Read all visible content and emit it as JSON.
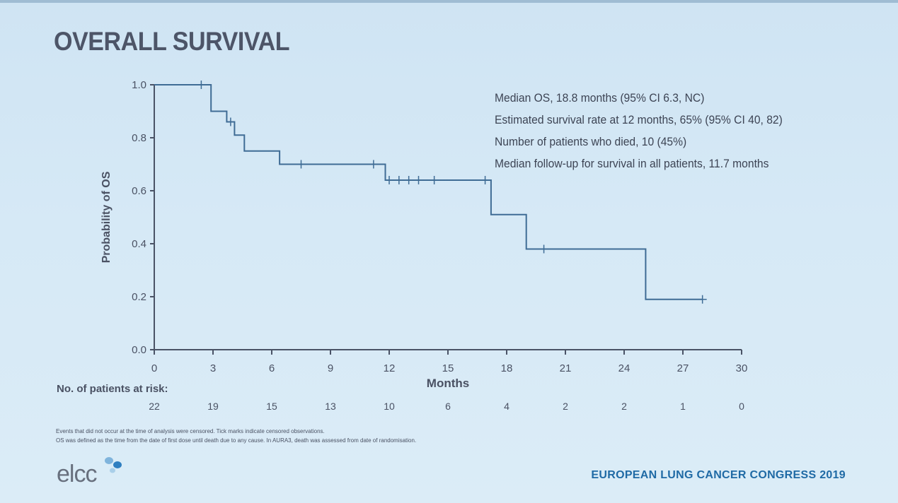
{
  "slide": {
    "title": "OVERALL SURVIVAL",
    "logo_text": "elcc",
    "congress": "EUROPEAN LUNG CANCER CONGRESS 2019"
  },
  "stats": [
    "Median OS, 18.8 months (95% CI 6.3, NC)",
    "Estimated survival rate at 12 months, 65% (95% CI 40, 82)",
    "Number of patients who died, 10 (45%)",
    "Median follow-up for survival in all patients, 11.7 months"
  ],
  "risk": {
    "title": "No. of patients at risk:",
    "values": [
      "22",
      "19",
      "15",
      "13",
      "10",
      "6",
      "4",
      "2",
      "2",
      "1",
      "0"
    ]
  },
  "footnotes": [
    "Events that did not occur at the time of analysis were censored. Tick marks indicate censored observations.",
    "OS was defined as the time from the date of first dose until death due to any cause. In AURA3, death was assessed from date of randomisation."
  ],
  "chart_data": {
    "type": "line",
    "xlabel": "Months",
    "ylabel": "Probability of OS",
    "xlim": [
      0,
      30
    ],
    "ylim": [
      0,
      1
    ],
    "x_ticks": [
      "0",
      "3",
      "6",
      "9",
      "12",
      "15",
      "18",
      "21",
      "24",
      "27",
      "30"
    ],
    "y_ticks": [
      "0.0",
      "0.2",
      "0.4",
      "0.6",
      "0.8",
      "1.0"
    ],
    "series": [
      {
        "step": true,
        "points": [
          {
            "x": 0,
            "y": 1.0
          },
          {
            "x": 2.9,
            "y": 1.0
          },
          {
            "x": 2.9,
            "y": 0.9
          },
          {
            "x": 3.7,
            "y": 0.9
          },
          {
            "x": 3.7,
            "y": 0.86
          },
          {
            "x": 4.1,
            "y": 0.86
          },
          {
            "x": 4.1,
            "y": 0.81
          },
          {
            "x": 4.6,
            "y": 0.81
          },
          {
            "x": 4.6,
            "y": 0.75
          },
          {
            "x": 6.4,
            "y": 0.75
          },
          {
            "x": 6.4,
            "y": 0.7
          },
          {
            "x": 11.8,
            "y": 0.7
          },
          {
            "x": 11.8,
            "y": 0.64
          },
          {
            "x": 17.2,
            "y": 0.64
          },
          {
            "x": 17.2,
            "y": 0.51
          },
          {
            "x": 19.0,
            "y": 0.51
          },
          {
            "x": 19.0,
            "y": 0.38
          },
          {
            "x": 25.1,
            "y": 0.38
          },
          {
            "x": 25.1,
            "y": 0.19
          },
          {
            "x": 28.0,
            "y": 0.19
          }
        ],
        "censored": [
          {
            "x": 2.4,
            "y": 1.0
          },
          {
            "x": 3.9,
            "y": 0.86
          },
          {
            "x": 7.5,
            "y": 0.7
          },
          {
            "x": 11.2,
            "y": 0.7
          },
          {
            "x": 12.0,
            "y": 0.64
          },
          {
            "x": 12.5,
            "y": 0.64
          },
          {
            "x": 13.0,
            "y": 0.64
          },
          {
            "x": 13.5,
            "y": 0.64
          },
          {
            "x": 14.3,
            "y": 0.64
          },
          {
            "x": 16.9,
            "y": 0.64
          },
          {
            "x": 19.9,
            "y": 0.38
          },
          {
            "x": 28.0,
            "y": 0.19
          }
        ]
      }
    ],
    "colors": {
      "line": "#3f6c95",
      "axis": "#4a5366",
      "text": "#4a5163"
    }
  }
}
